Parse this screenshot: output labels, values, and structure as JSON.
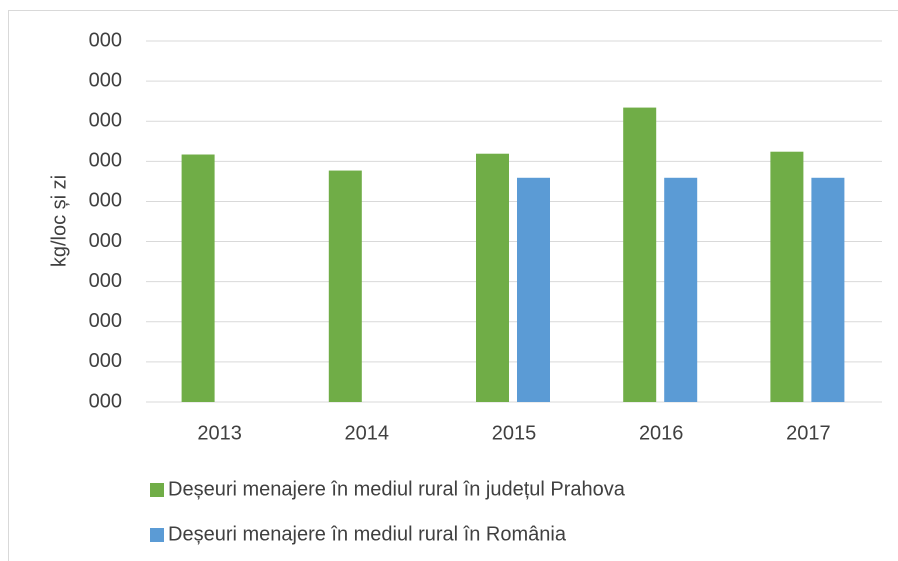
{
  "chart_data": {
    "type": "bar",
    "y_label": "kg/loc și zi",
    "categories": [
      "2013",
      "2014",
      "2015",
      "2016",
      "2017"
    ],
    "series": [
      {
        "name": "Deșeuri menajere în mediul rural în județul Prahova",
        "color": "#70ad47",
        "values": [
          0.617,
          0.577,
          0.619,
          0.734,
          0.624
        ]
      },
      {
        "name": "Deșeuri menajere în mediul rural în România",
        "color": "#5b9bd5",
        "values": [
          null,
          null,
          0.559,
          0.559,
          0.559
        ]
      }
    ],
    "ylim": [
      0,
      0.9
    ],
    "yticks": [
      {
        "value": 0,
        "label": "000"
      },
      {
        "value": 0.1,
        "label": "000"
      },
      {
        "value": 0.2,
        "label": "000"
      },
      {
        "value": 0.3,
        "label": "000"
      },
      {
        "value": 0.4,
        "label": "000"
      },
      {
        "value": 0.5,
        "label": "000"
      },
      {
        "value": 0.6,
        "label": "000"
      },
      {
        "value": 0.7,
        "label": "000"
      },
      {
        "value": 0.8,
        "label": "000"
      },
      {
        "value": 0.9,
        "label": "000"
      }
    ],
    "grid": true,
    "legend": "bottom"
  }
}
